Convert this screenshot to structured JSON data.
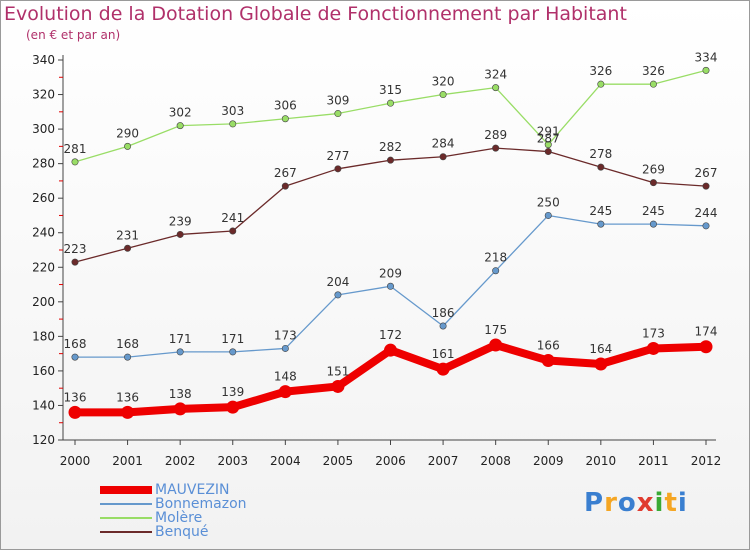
{
  "header": {
    "title": "Evolution de la Dotation Globale de Fonctionnement par Habitant",
    "subtitle": "(en € et par an)"
  },
  "logo": {
    "text": "Proxiti",
    "colors": [
      "#3a7fd0",
      "#f5a623",
      "#3a7fd0",
      "#e03b2f",
      "#3aaa35",
      "#f5a623",
      "#3a7fd0"
    ]
  },
  "chart_data": {
    "type": "line",
    "x": [
      "2000",
      "2001",
      "2002",
      "2003",
      "2004",
      "2005",
      "2006",
      "2007",
      "2008",
      "2009",
      "2010",
      "2011",
      "2012"
    ],
    "ylim": [
      120,
      340
    ],
    "yticks": [
      120,
      140,
      160,
      180,
      200,
      220,
      240,
      260,
      280,
      300,
      320,
      340
    ],
    "grid": false,
    "legend_position": "bottom-left",
    "series": [
      {
        "name": "MAUVEZIN",
        "color": "#ee0000",
        "width": 8,
        "values": [
          136,
          136,
          138,
          139,
          148,
          151,
          172,
          161,
          175,
          166,
          164,
          173,
          174
        ]
      },
      {
        "name": "Bonnemazon",
        "color": "#6699cc",
        "width": 1.3,
        "values": [
          168,
          168,
          171,
          171,
          173,
          204,
          209,
          186,
          218,
          250,
          245,
          245,
          244
        ]
      },
      {
        "name": "Molère",
        "color": "#99dd66",
        "width": 1.3,
        "values": [
          281,
          290,
          302,
          303,
          306,
          309,
          315,
          320,
          324,
          291,
          326,
          326,
          334
        ]
      },
      {
        "name": "Benqué",
        "color": "#6b2a2a",
        "width": 1.3,
        "values": [
          223,
          231,
          239,
          241,
          267,
          277,
          282,
          284,
          289,
          287,
          278,
          269,
          267
        ]
      }
    ]
  }
}
